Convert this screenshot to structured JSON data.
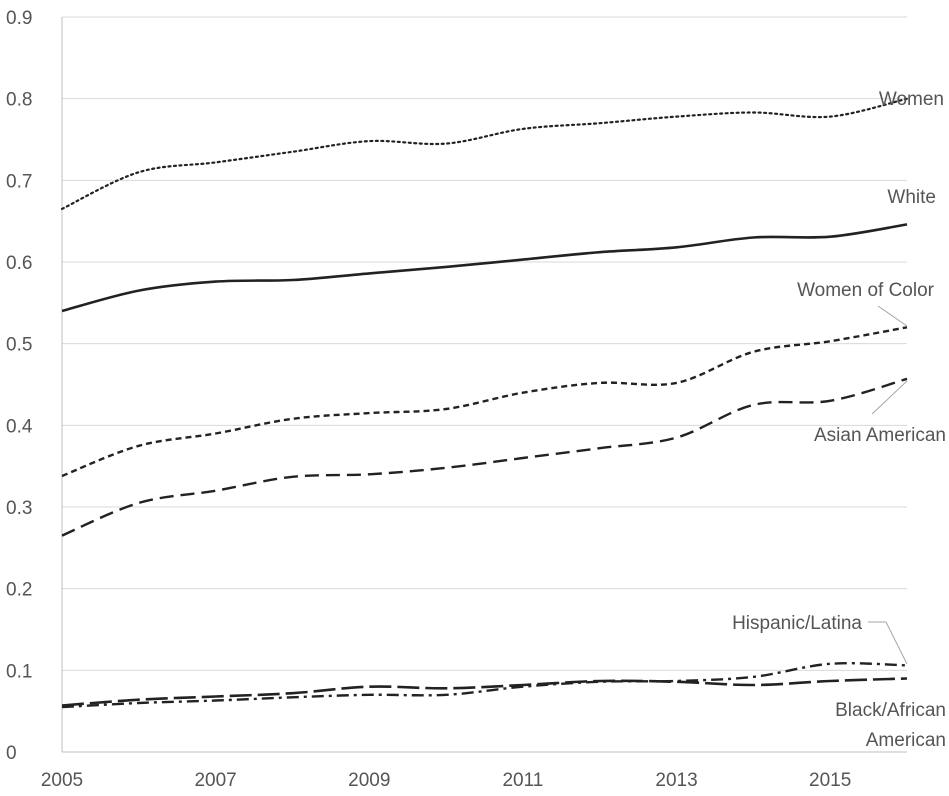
{
  "chart_data": {
    "type": "line",
    "title": "",
    "xlabel": "",
    "ylabel": "",
    "x": [
      2005,
      2006,
      2007,
      2008,
      2009,
      2010,
      2011,
      2012,
      2013,
      2014,
      2015,
      2016
    ],
    "x_tick_labels": [
      "2005",
      "2007",
      "2009",
      "2011",
      "2013",
      "2015"
    ],
    "y_tick_labels": [
      "0",
      "0.1",
      "0.2",
      "0.3",
      "0.4",
      "0.5",
      "0.6",
      "0.7",
      "0.8",
      "0.9"
    ],
    "ylim": [
      0,
      0.9
    ],
    "xlim": [
      2005,
      2016
    ],
    "grid": "horizontal",
    "legend": "inline labels at line ends",
    "series": [
      {
        "name": "Women",
        "style": "dotted",
        "values": [
          0.665,
          0.71,
          0.722,
          0.735,
          0.748,
          0.745,
          0.763,
          0.77,
          0.778,
          0.783,
          0.778,
          0.8
        ]
      },
      {
        "name": "White",
        "style": "solid",
        "values": [
          0.54,
          0.565,
          0.576,
          0.578,
          0.586,
          0.594,
          0.603,
          0.612,
          0.618,
          0.63,
          0.631,
          0.646
        ]
      },
      {
        "name": "Women of Color",
        "style": "short-dash",
        "values": [
          0.338,
          0.375,
          0.39,
          0.408,
          0.415,
          0.42,
          0.44,
          0.452,
          0.452,
          0.49,
          0.503,
          0.52
        ]
      },
      {
        "name": "Asian American",
        "style": "long-dash",
        "values": [
          0.265,
          0.305,
          0.32,
          0.337,
          0.34,
          0.348,
          0.36,
          0.372,
          0.385,
          0.425,
          0.43,
          0.457
        ]
      },
      {
        "name": "Hispanic/Latina",
        "style": "dash-dot",
        "values": [
          0.055,
          0.06,
          0.063,
          0.067,
          0.07,
          0.07,
          0.08,
          0.086,
          0.087,
          0.092,
          0.108,
          0.106
        ]
      },
      {
        "name": "Black/African American",
        "style": "long-dash-heavy",
        "values": [
          0.057,
          0.064,
          0.068,
          0.072,
          0.08,
          0.078,
          0.082,
          0.087,
          0.086,
          0.082,
          0.087,
          0.09
        ]
      }
    ],
    "labels": [
      {
        "series": "Women",
        "lines": [
          "Women"
        ]
      },
      {
        "series": "White",
        "lines": [
          "White"
        ]
      },
      {
        "series": "Women of Color",
        "lines": [
          "Women of Color"
        ]
      },
      {
        "series": "Asian American",
        "lines": [
          "Asian American"
        ]
      },
      {
        "series": "Hispanic/Latina",
        "lines": [
          "Hispanic/Latina"
        ]
      },
      {
        "series": "Black/African American",
        "lines": [
          "Black/African",
          "American"
        ]
      }
    ]
  }
}
